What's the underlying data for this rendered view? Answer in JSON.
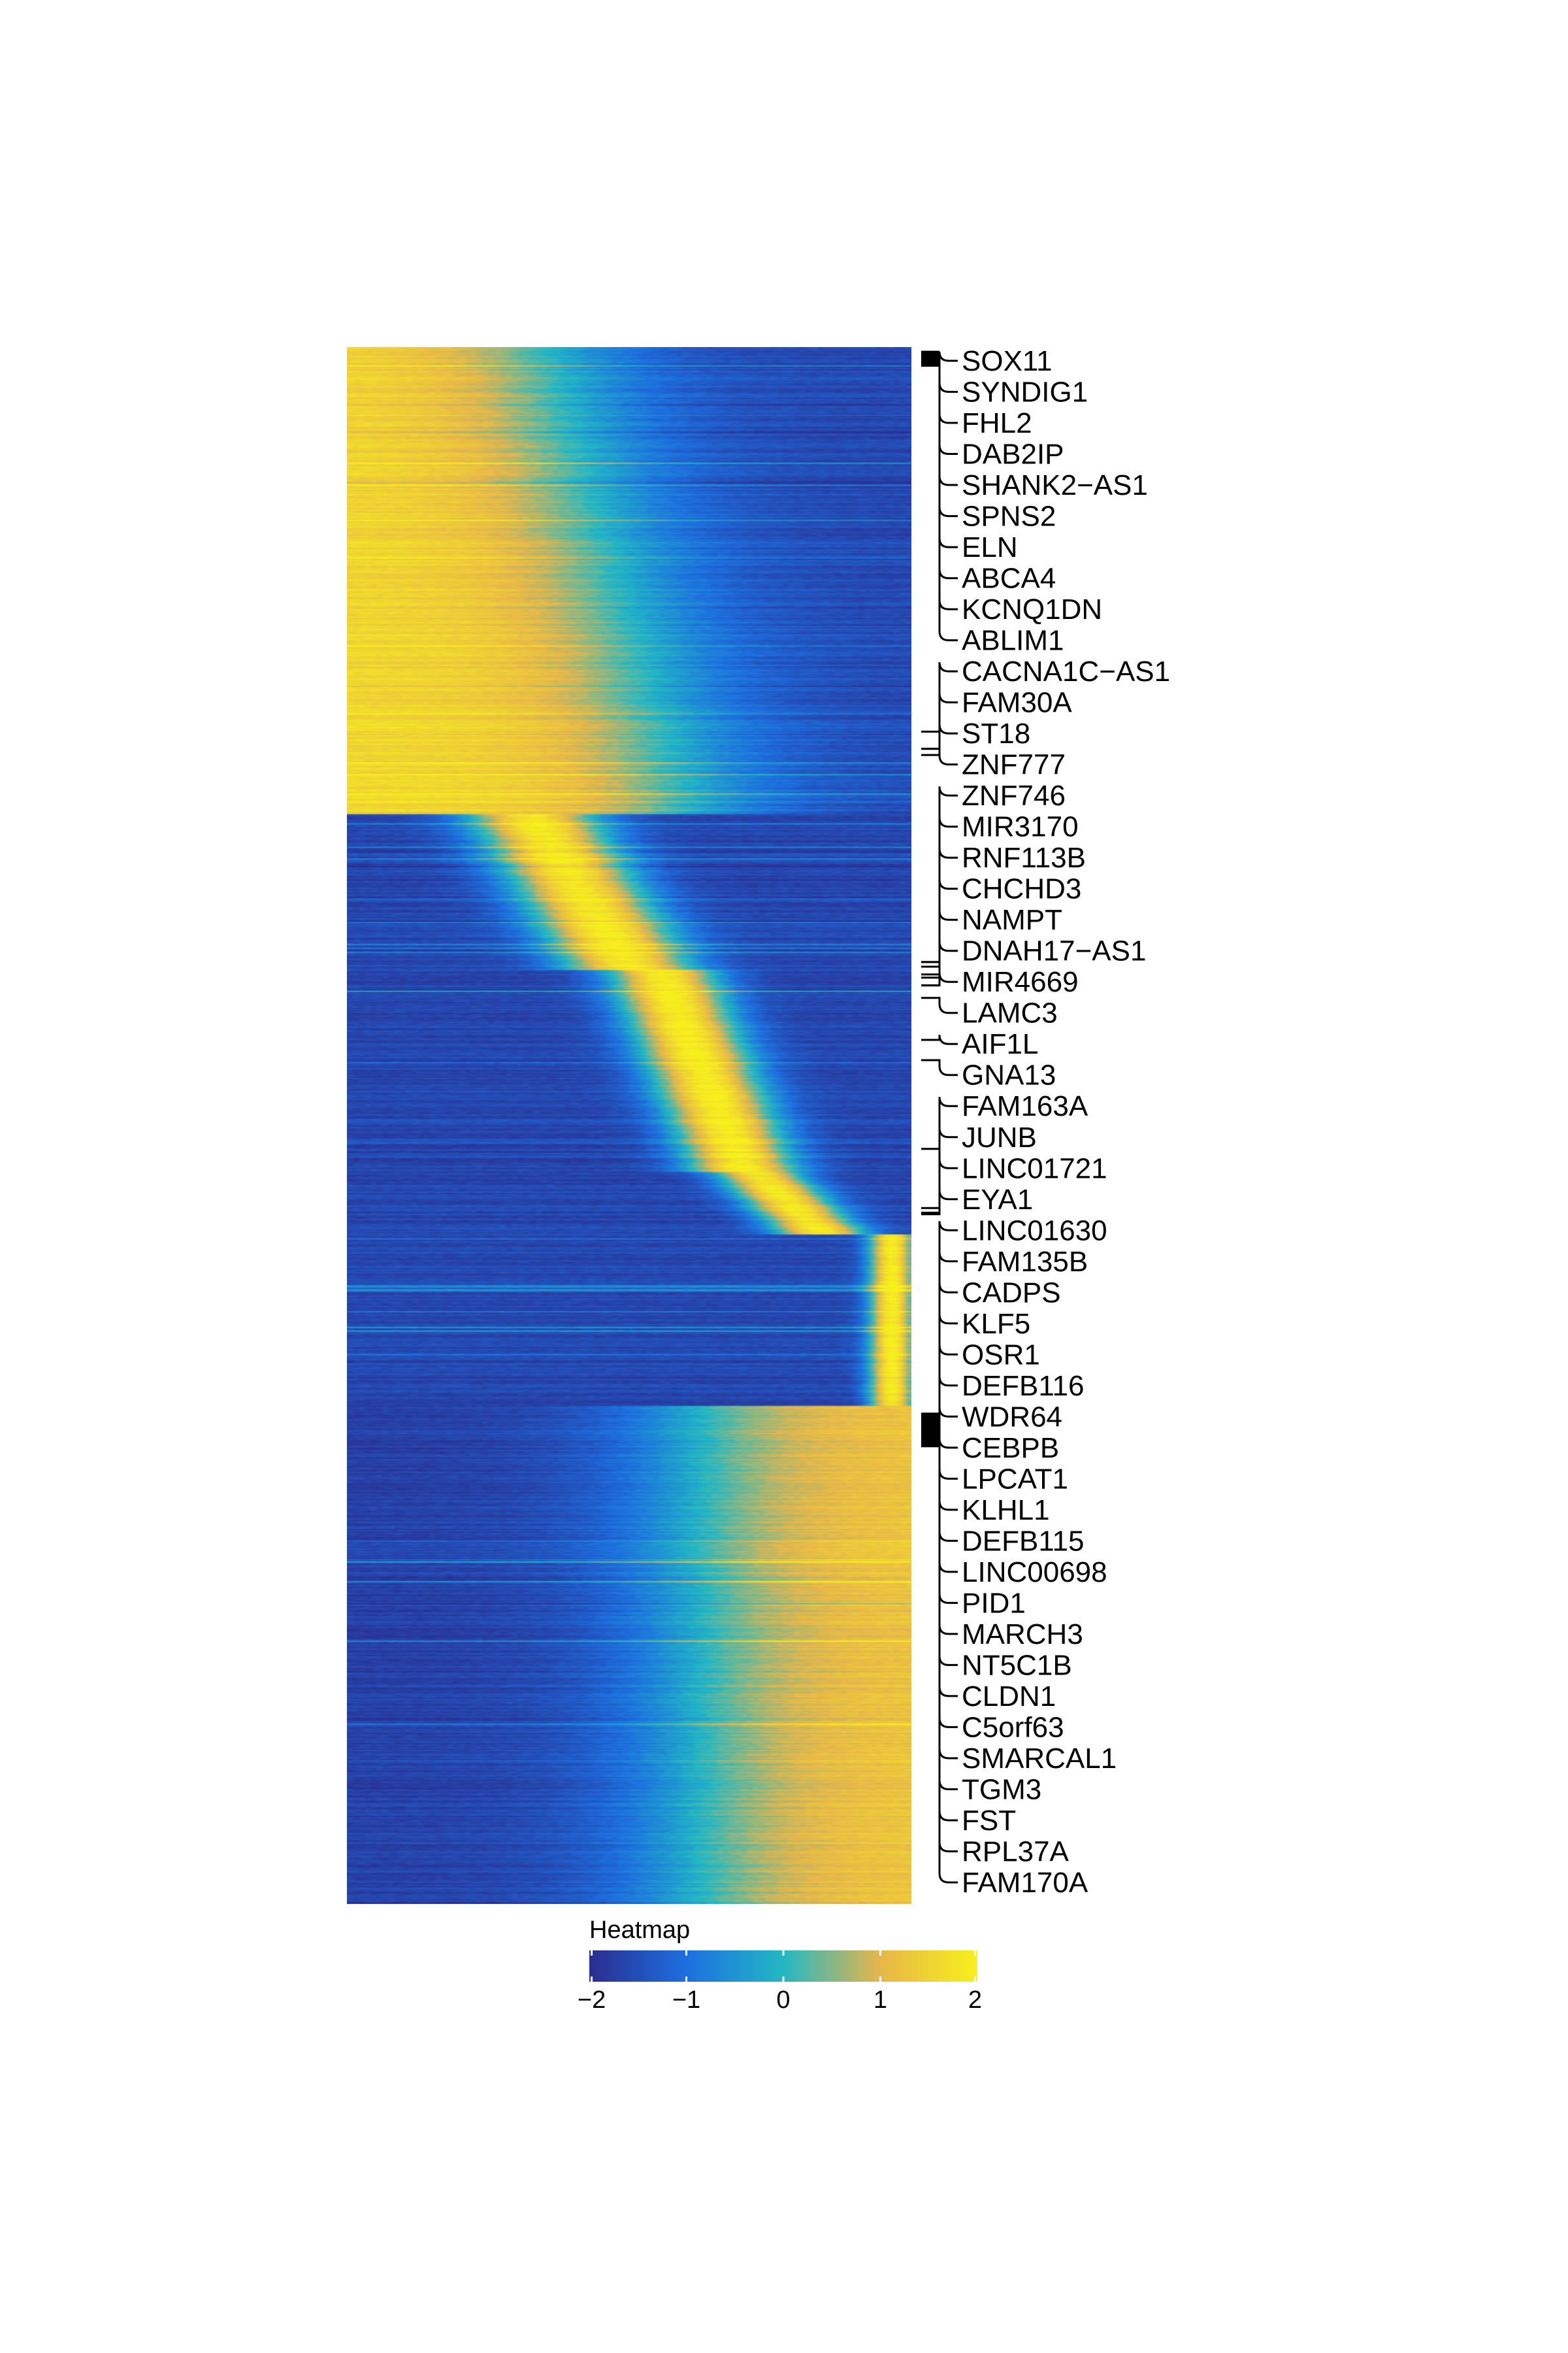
{
  "chart_data": {
    "type": "heatmap",
    "title": "",
    "xlabel": "",
    "ylabel": "",
    "legend": {
      "title": "Heatmap",
      "placement": "bottom",
      "ticks": [
        -2,
        -1,
        0,
        1,
        2
      ],
      "tick_labels": [
        "−2",
        "−1",
        "0",
        "1",
        "2"
      ],
      "range": [
        -2,
        2
      ],
      "colorscale": [
        "#2b2d8e",
        "#1d6fe0",
        "#22b8c4",
        "#e8b64a",
        "#f7f01c"
      ]
    },
    "gene_labels": [
      "SOX11",
      "SYNDIG1",
      "FHL2",
      "DAB2IP",
      "SHANK2−AS1",
      "SPNS2",
      "ELN",
      "ABCA4",
      "KCNQ1DN",
      "ABLIM1",
      "CACNA1C−AS1",
      "FAM30A",
      "ST18",
      "ZNF777",
      "ZNF746",
      "MIR3170",
      "RNF113B",
      "CHCHD3",
      "NAMPT",
      "DNAH17−AS1",
      "MIR4669",
      "LAMC3",
      "AIF1L",
      "GNA13",
      "FAM163A",
      "JUNB",
      "LINC01721",
      "EYA1",
      "LINC01630",
      "FAM135B",
      "CADPS",
      "KLF5",
      "OSR1",
      "DEFB116",
      "WDR64",
      "CEBPB",
      "LPCAT1",
      "KLHL1",
      "DEFB115",
      "LINC00698",
      "PID1",
      "MARCH3",
      "NT5C1B",
      "CLDN1",
      "C5orf63",
      "SMARCAL1",
      "TGM3",
      "FST",
      "RPL37A",
      "FAM170A"
    ],
    "label_row_fraction": [
      0.003,
      0.004,
      0.005,
      0.006,
      0.007,
      0.008,
      0.009,
      0.01,
      0.011,
      0.012,
      0.258,
      0.262,
      0.247,
      0.258,
      0.395,
      0.398,
      0.405,
      0.41,
      0.395,
      0.403,
      0.41,
      0.418,
      0.445,
      0.458,
      0.515,
      0.553,
      0.556,
      0.557,
      0.685,
      0.686,
      0.687,
      0.688,
      0.689,
      0.69,
      0.691,
      0.692,
      0.693,
      0.694,
      0.695,
      0.696,
      0.697,
      0.698,
      0.699,
      0.7,
      0.701,
      0.702,
      0.703,
      0.704,
      0.705,
      0.706
    ],
    "row_clusters": [
      {
        "rows_fraction": [
          0.0,
          0.3
        ],
        "peak_column": 0.15,
        "high_value": 1.7
      },
      {
        "rows_fraction": [
          0.3,
          0.4
        ],
        "peak_column": 0.4,
        "high_value": 1.9
      },
      {
        "rows_fraction": [
          0.4,
          0.53
        ],
        "peak_column": 0.62,
        "high_value": 2.0
      },
      {
        "rows_fraction": [
          0.53,
          0.57
        ],
        "peak_column": 0.8,
        "high_value": 1.9
      },
      {
        "rows_fraction": [
          0.57,
          0.68
        ],
        "peak_column": 0.96,
        "high_value": 2.0
      },
      {
        "rows_fraction": [
          0.68,
          1.0
        ],
        "peak_column": 0.9,
        "high_value": 1.3
      }
    ]
  }
}
